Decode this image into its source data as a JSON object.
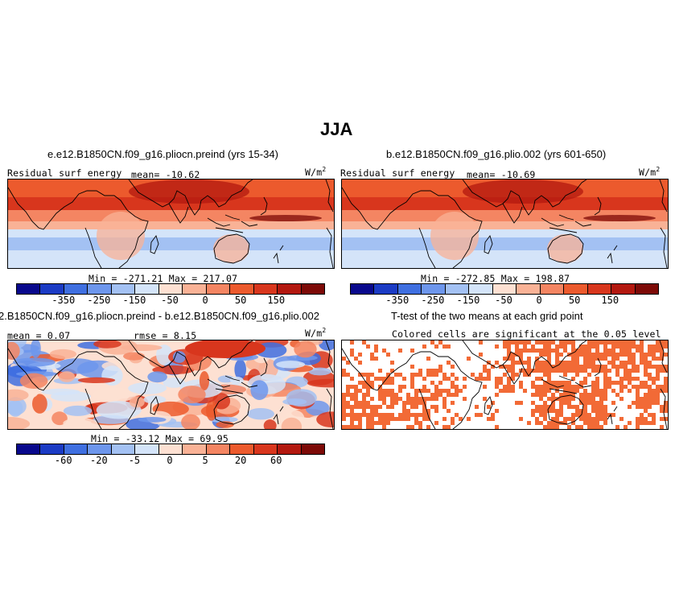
{
  "figure": {
    "title": "JJA",
    "units": "W/m",
    "units_sup": "2"
  },
  "colors": {
    "diverging": [
      "#08088c",
      "#1b3bc4",
      "#3f6fe0",
      "#6d96ec",
      "#a3c1f3",
      "#d4e4f9",
      "#fde0d2",
      "#f9b296",
      "#f48562",
      "#ec5a2d",
      "#d8361d",
      "#b3180f",
      "#7d0a07"
    ],
    "significant": "#f26a36",
    "land_line": "#000000"
  },
  "panels": [
    {
      "id": "top-left",
      "title": "e.e12.B1850CN.f09_g16.pliocn.preind (yrs 15-34)",
      "left_label": "Residual surf energy",
      "center_label": "mean= -10.62",
      "minmax": "Min = -271.21  Max = 217.07"
    },
    {
      "id": "top-right",
      "title": "b.e12.B1850CN.f09_g16.plio.002 (yrs 601-650)",
      "left_label": "Residual surf energy",
      "center_label": "mean= -10.69",
      "minmax": "Min = -272.85  Max = 198.87"
    },
    {
      "id": "bottom-left",
      "title": "2.B1850CN.f09_g16.pliocn.preind - b.e12.B1850CN.f09_g16.plio.002",
      "left_label": "mean =   0.07",
      "center_label": "rmse =   8.15",
      "minmax": "Min = -33.12  Max =  69.95"
    },
    {
      "id": "bottom-right",
      "title": "T-test of the two means at each grid point",
      "subtitle": "Colored cells are significant at the 0.05 level"
    }
  ],
  "chart_data": [
    {
      "type": "heatmap",
      "title": "e.e12.B1850CN.f09_g16.pliocn.preind (yrs 15-34)",
      "variable": "Residual surf energy",
      "mean": -10.62,
      "min": -271.21,
      "max": 217.07,
      "colorbar_ticks": [
        "-350",
        "-250",
        "-150",
        "-50",
        "0",
        "50",
        "150"
      ],
      "units": "W/m2"
    },
    {
      "type": "heatmap",
      "title": "b.e12.B1850CN.f09_g16.plio.002 (yrs 601-650)",
      "variable": "Residual surf energy",
      "mean": -10.69,
      "min": -272.85,
      "max": 198.87,
      "colorbar_ticks": [
        "-350",
        "-250",
        "-150",
        "-50",
        "0",
        "50",
        "150"
      ],
      "units": "W/m2"
    },
    {
      "type": "heatmap",
      "title": "2.B1850CN.f09_g16.pliocn.preind - b.e12.B1850CN.f09_g16.plio.002",
      "mean": 0.07,
      "rmse": 8.15,
      "min": -33.12,
      "max": 69.95,
      "colorbar_ticks": [
        "-60",
        "-20",
        "-5",
        "0",
        "5",
        "20",
        "60"
      ],
      "units": "W/m2"
    },
    {
      "type": "heatmap",
      "title": "T-test of the two means at each grid point",
      "subtitle": "Colored cells are significant at the 0.05 level",
      "significance_level": 0.05
    }
  ]
}
